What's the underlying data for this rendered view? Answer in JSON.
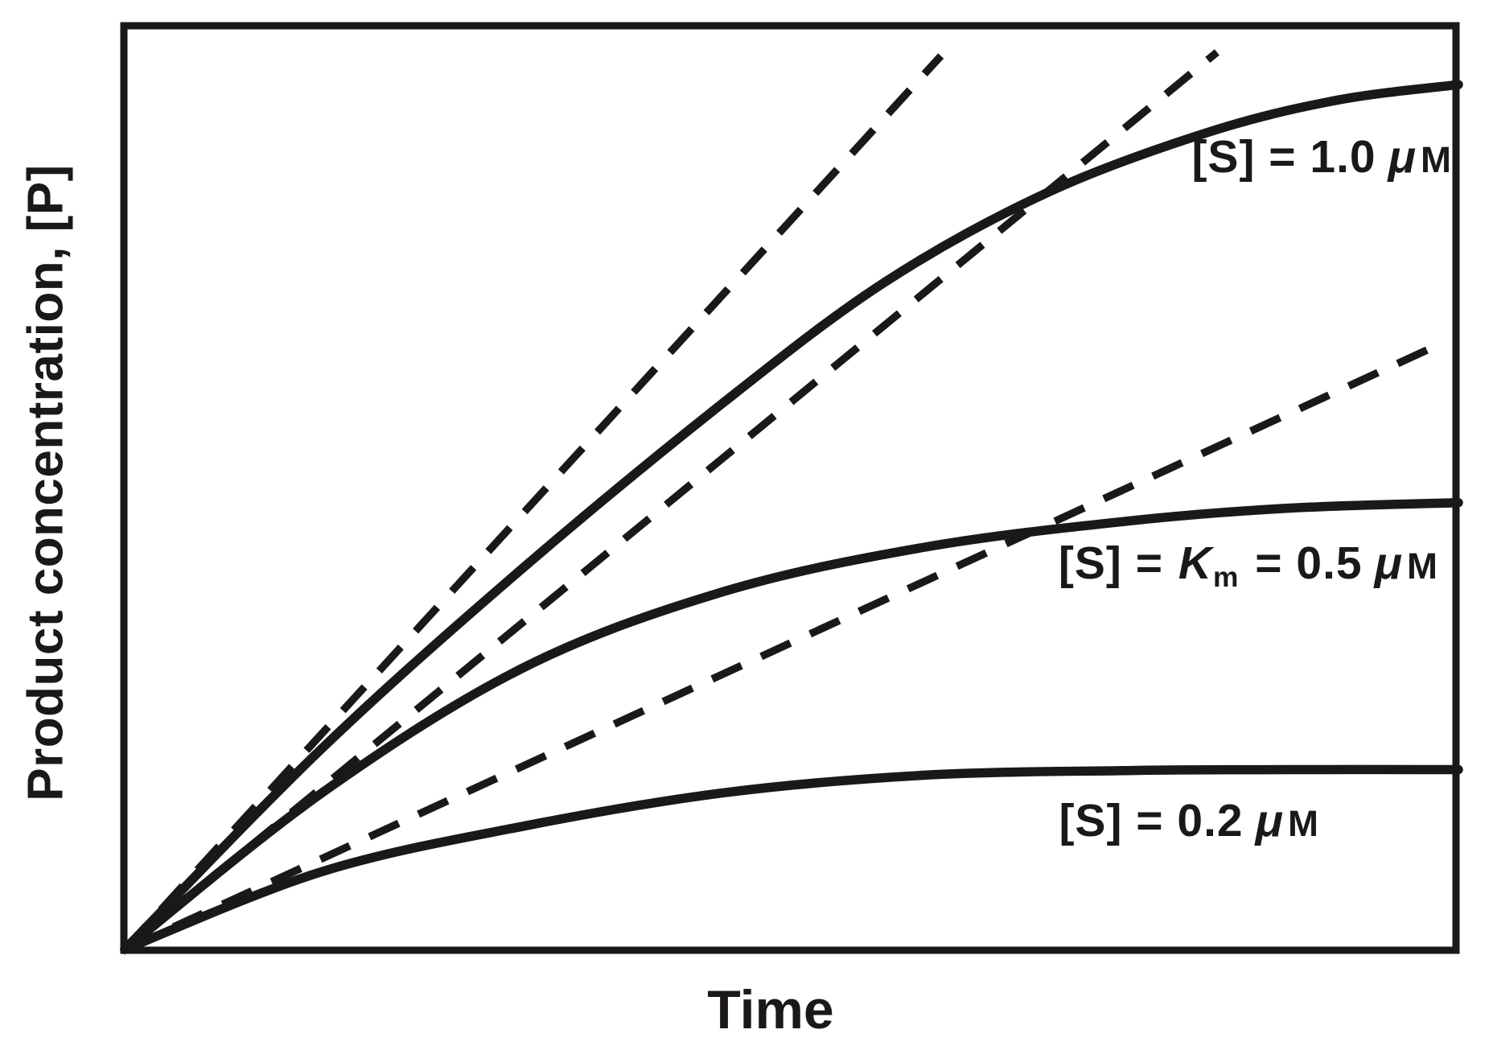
{
  "chart_data": {
    "type": "line",
    "title": "",
    "xlabel": "Time",
    "ylabel": "Product concentration, [P]",
    "axes_unlabeled": true,
    "ticks": "none",
    "frame": "full-box",
    "legend_position": "labels-on-plot",
    "x_range_norm": [
      0,
      1
    ],
    "y_range_norm": [
      0,
      1
    ],
    "series": [
      {
        "name": "progress curve [S] = 1.0 uM",
        "substrate_concentration_uM": 1.0,
        "style": "solid",
        "points_norm": [
          [
            0,
            0
          ],
          [
            0.148,
            0.217
          ],
          [
            0.299,
            0.412
          ],
          [
            0.449,
            0.59
          ],
          [
            0.57,
            0.72
          ],
          [
            0.691,
            0.816
          ],
          [
            0.811,
            0.881
          ],
          [
            0.908,
            0.916
          ],
          [
            1.0,
            0.933
          ]
        ]
      },
      {
        "name": "progress curve [S] = Km = 0.5 uM",
        "substrate_concentration_uM": 0.5,
        "Km_uM": 0.5,
        "style": "solid",
        "points_norm": [
          [
            0,
            0
          ],
          [
            0.148,
            0.169
          ],
          [
            0.299,
            0.304
          ],
          [
            0.449,
            0.386
          ],
          [
            0.6,
            0.434
          ],
          [
            0.751,
            0.462
          ],
          [
            0.872,
            0.476
          ],
          [
            1.0,
            0.482
          ]
        ]
      },
      {
        "name": "progress curve [S] = 0.2 uM",
        "substrate_concentration_uM": 0.2,
        "style": "solid",
        "points_norm": [
          [
            0,
            0
          ],
          [
            0.148,
            0.084
          ],
          [
            0.299,
            0.133
          ],
          [
            0.449,
            0.169
          ],
          [
            0.6,
            0.188
          ],
          [
            0.751,
            0.193
          ],
          [
            0.872,
            0.194
          ],
          [
            1.0,
            0.194
          ]
        ]
      },
      {
        "name": "initial-rate tangent, [S] = 1.0 uM",
        "style": "dashed",
        "points_norm": [
          [
            0,
            0
          ],
          [
            0.612,
            0.964
          ]
        ]
      },
      {
        "name": "initial-rate tangent, [S] = 0.5 uM",
        "style": "dashed",
        "points_norm": [
          [
            0,
            0
          ],
          [
            0.819,
            0.968
          ]
        ]
      },
      {
        "name": "initial-rate tangent, [S] = 0.2 uM",
        "style": "dashed",
        "points_norm": [
          [
            0,
            0
          ],
          [
            0.986,
            0.653
          ]
        ]
      }
    ],
    "series_labels": [
      {
        "parts": {
          "pre": "[S] = 1.0",
          "mu": "μ",
          "unit": "M"
        }
      },
      {
        "parts": {
          "pre": "[S] = ",
          "k": "K",
          "k_sub": "m",
          "mid": " = 0.5",
          "mu": "μ",
          "unit": "M"
        }
      },
      {
        "parts": {
          "pre": "[S] = 0.2",
          "mu": "μ",
          "unit": "M"
        }
      }
    ]
  },
  "figure_text": {
    "y_axis_label": "Product concentration, [P]",
    "x_axis_label": "Time"
  },
  "colors": {
    "ink": "#1b1918",
    "background": "#ffffff"
  }
}
